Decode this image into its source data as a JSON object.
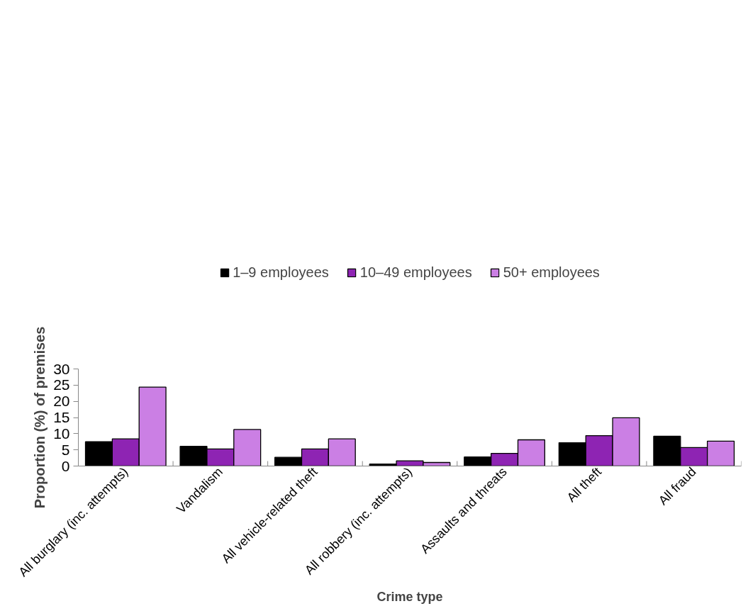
{
  "chart_data": {
    "type": "bar",
    "xlabel": "Crime type",
    "ylabel": "Proportion (%) of premises",
    "categories": [
      "All burglary (inc. attempts)",
      "Vandalism",
      "All vehicle-related theft",
      "All robbery (inc. attempts)",
      "Assaults and threats",
      "All theft",
      "All fraud"
    ],
    "series": [
      {
        "name": "1–9 employees",
        "color": "#000000",
        "values": [
          7.5,
          6.1,
          2.7,
          0.6,
          2.8,
          7.2,
          9.2
        ]
      },
      {
        "name": "10–49 employees",
        "color": "#8e24b3",
        "values": [
          8.4,
          5.3,
          5.3,
          1.6,
          3.9,
          9.4,
          5.7
        ]
      },
      {
        "name": "50+ employees",
        "color": "#cb7fe4",
        "values": [
          24.4,
          11.3,
          8.4,
          1.1,
          8.1,
          14.9,
          7.7
        ]
      }
    ],
    "ylim": [
      0,
      30
    ],
    "yticks": [
      0,
      5,
      10,
      15,
      20,
      25,
      30
    ],
    "grid": false,
    "legend": "top"
  }
}
